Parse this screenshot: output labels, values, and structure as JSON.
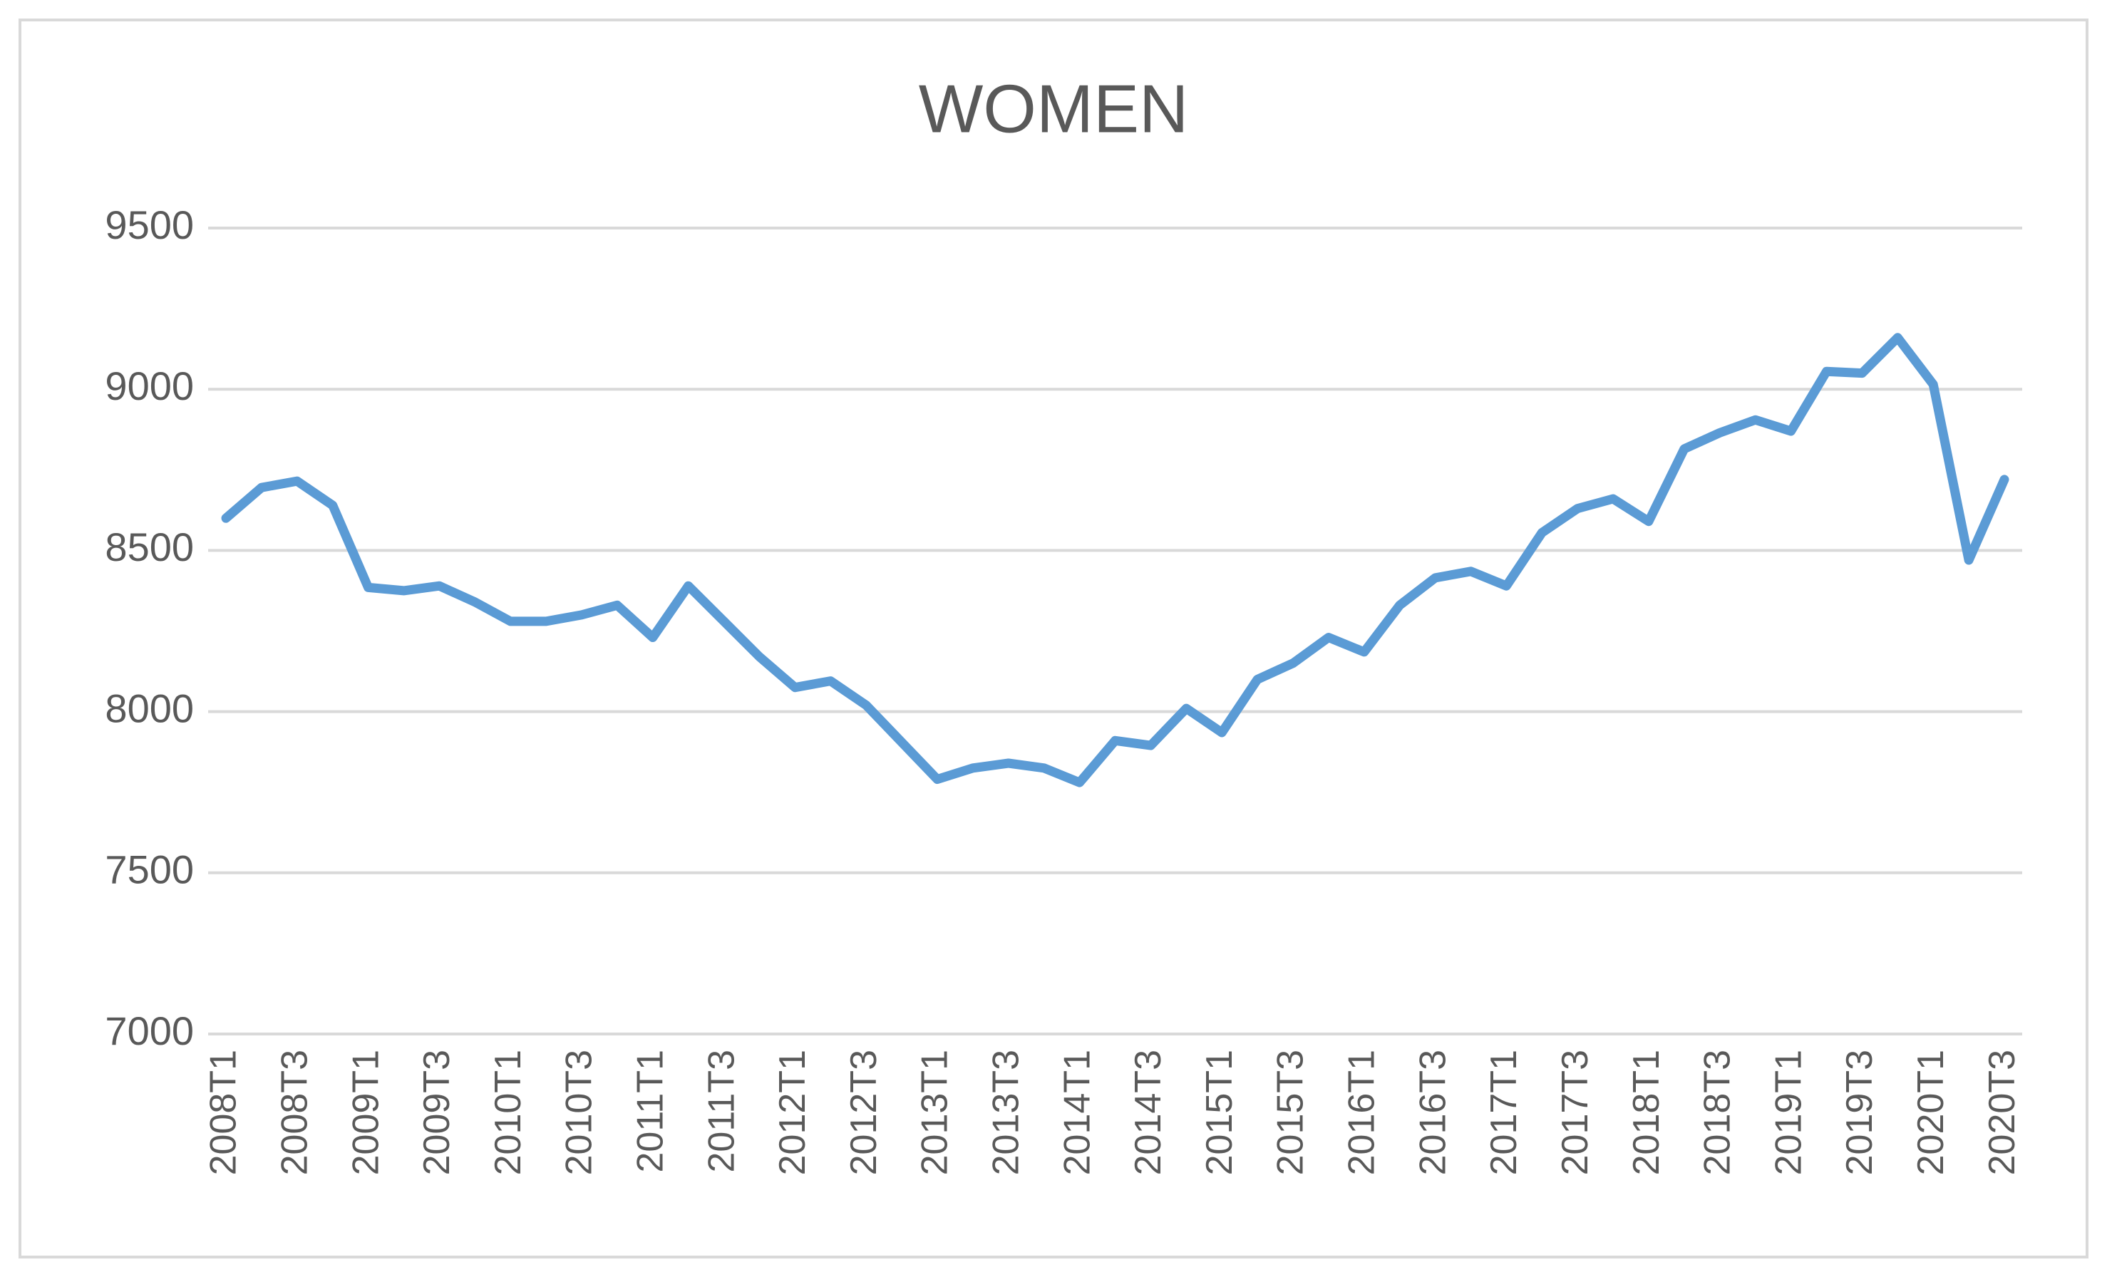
{
  "chart_data": {
    "type": "line",
    "title": "WOMEN",
    "categories": [
      "2008T1",
      null,
      "2008T3",
      null,
      "2009T1",
      null,
      "2009T3",
      null,
      "2010T1",
      null,
      "2010T3",
      null,
      "2011T1",
      null,
      "2011T3",
      null,
      "2012T1",
      null,
      "2012T3",
      null,
      "2013T1",
      null,
      "2013T3",
      null,
      "2014T1",
      null,
      "2014T3",
      null,
      "2015T1",
      null,
      "2015T3",
      null,
      "2016T1",
      null,
      "2016T3",
      null,
      "2017T1",
      null,
      "2017T3",
      null,
      "2018T1",
      null,
      "2018T3",
      null,
      "2019T1",
      null,
      "2019T3",
      null,
      "2020T1",
      null,
      "2020T3"
    ],
    "values": [
      8600,
      8695,
      8715,
      8640,
      8385,
      8375,
      8390,
      8340,
      8280,
      8280,
      8300,
      8330,
      8230,
      8390,
      8280,
      8170,
      8075,
      8095,
      8020,
      7905,
      7790,
      7825,
      7840,
      7825,
      7780,
      7910,
      7895,
      8010,
      7935,
      8100,
      8150,
      8230,
      8185,
      8330,
      8415,
      8435,
      8390,
      8555,
      8630,
      8660,
      8590,
      8815,
      8865,
      8905,
      8870,
      9055,
      9050,
      9160,
      9015,
      8470,
      8720
    ],
    "color": "#5b9bd5",
    "ylim": [
      7000,
      9500
    ],
    "yticks": [
      7000,
      7500,
      8000,
      8500,
      9000,
      9500
    ],
    "grid": true
  }
}
